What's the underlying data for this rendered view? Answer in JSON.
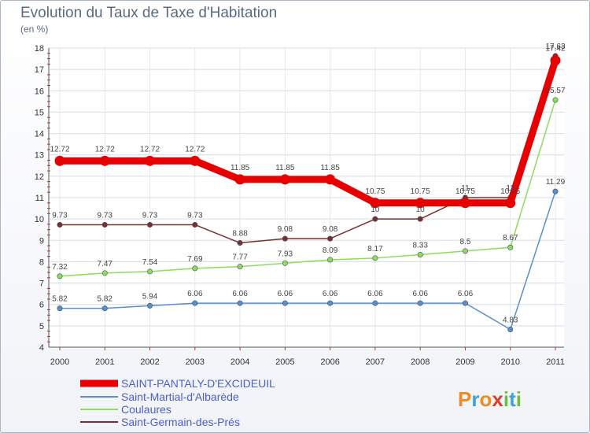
{
  "title": "Evolution du Taux de Taxe d'Habitation",
  "subtitle": "(en %)",
  "brand": {
    "letters": [
      "P",
      "r",
      "o",
      "x",
      "i",
      "t",
      "i"
    ],
    "colors": [
      "#f08a24",
      "#3fa3d8",
      "#f08a24",
      "#e03c2a",
      "#6cbf3a",
      "#3fa3d8",
      "#6cbf3a"
    ]
  },
  "chart_data": {
    "type": "line",
    "title": "Evolution du Taux de Taxe d'Habitation",
    "ylabel": "(en %)",
    "x": [
      "2000",
      "2001",
      "2002",
      "2003",
      "2004",
      "2005",
      "2006",
      "2007",
      "2008",
      "2009",
      "2010",
      "2011"
    ],
    "ylim": [
      4,
      18
    ],
    "yticks": [
      "4",
      "5",
      "6",
      "7",
      "8",
      "9",
      "10",
      "11",
      "12",
      "13",
      "14",
      "15",
      "16",
      "17",
      "18"
    ],
    "series": [
      {
        "name": "SAINT-PANTALY-D'EXCIDEUIL",
        "color": "#e80000",
        "width": 9,
        "values": [
          12.72,
          12.72,
          12.72,
          12.72,
          11.85,
          11.85,
          11.85,
          10.75,
          10.75,
          10.75,
          10.75,
          17.42
        ],
        "labels": [
          "12.72",
          "12.72",
          "12.72",
          "12.72",
          "11.85",
          "11.85",
          "11.85",
          "10.75",
          "10.75",
          "10.75",
          "10.75",
          "17.42"
        ]
      },
      {
        "name": "Saint-Martial-d'Albarède",
        "color": "#5b8fc9",
        "width": 1.5,
        "values": [
          5.82,
          5.82,
          5.94,
          6.06,
          6.06,
          6.06,
          6.06,
          6.06,
          6.06,
          6.06,
          4.83,
          11.29
        ],
        "labels": [
          "5.82",
          "5.82",
          "5.94",
          "6.06",
          "6.06",
          "6.06",
          "6.06",
          "6.06",
          "6.06",
          "6.06",
          "4.83",
          "11.29"
        ]
      },
      {
        "name": "Coulaures",
        "color": "#8fdc5c",
        "width": 1.5,
        "values": [
          7.32,
          7.47,
          7.54,
          7.69,
          7.77,
          7.93,
          8.09,
          8.17,
          8.33,
          8.5,
          8.67,
          15.57
        ],
        "labels": [
          "7.32",
          "7.47",
          "7.54",
          "7.69",
          "7.77",
          "7.93",
          "8.09",
          "8.17",
          "8.33",
          "8.5",
          "8.67",
          "15.57"
        ]
      },
      {
        "name": "Saint-Germain-des-Prés",
        "color": "#7a2e2e",
        "width": 1.5,
        "values": [
          9.73,
          9.73,
          9.73,
          9.73,
          8.88,
          9.08,
          9.08,
          10,
          10,
          11,
          11,
          17.63
        ],
        "labels": [
          "9.73",
          "9.73",
          "9.73",
          "9.73",
          "8.88",
          "9.08",
          "9.08",
          "10",
          "10",
          "11",
          "11",
          "17.63"
        ]
      }
    ]
  }
}
